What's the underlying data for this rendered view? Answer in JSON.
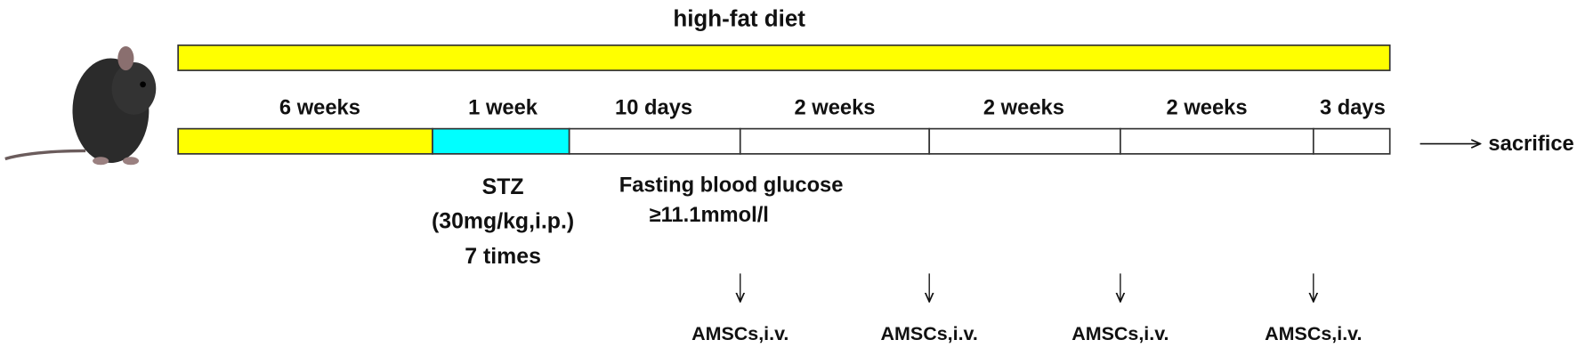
{
  "header": {
    "title": "high-fat diet"
  },
  "timeline": {
    "segments": [
      "6 weeks",
      "1 week",
      "10 days",
      "2 weeks",
      "2 weeks",
      "2 weeks",
      "3 days"
    ],
    "end": "sacrifice"
  },
  "notes": {
    "stz": [
      "STZ",
      "(30mg/kg,i.p.)",
      "7 times"
    ],
    "fasting": [
      "Fasting blood glucose",
      "≥11.1mmol/l"
    ]
  },
  "injections": [
    "AMSCs,i.v.",
    "AMSCs,i.v.",
    "AMSCs,i.v.",
    "AMSCs,i.v."
  ]
}
